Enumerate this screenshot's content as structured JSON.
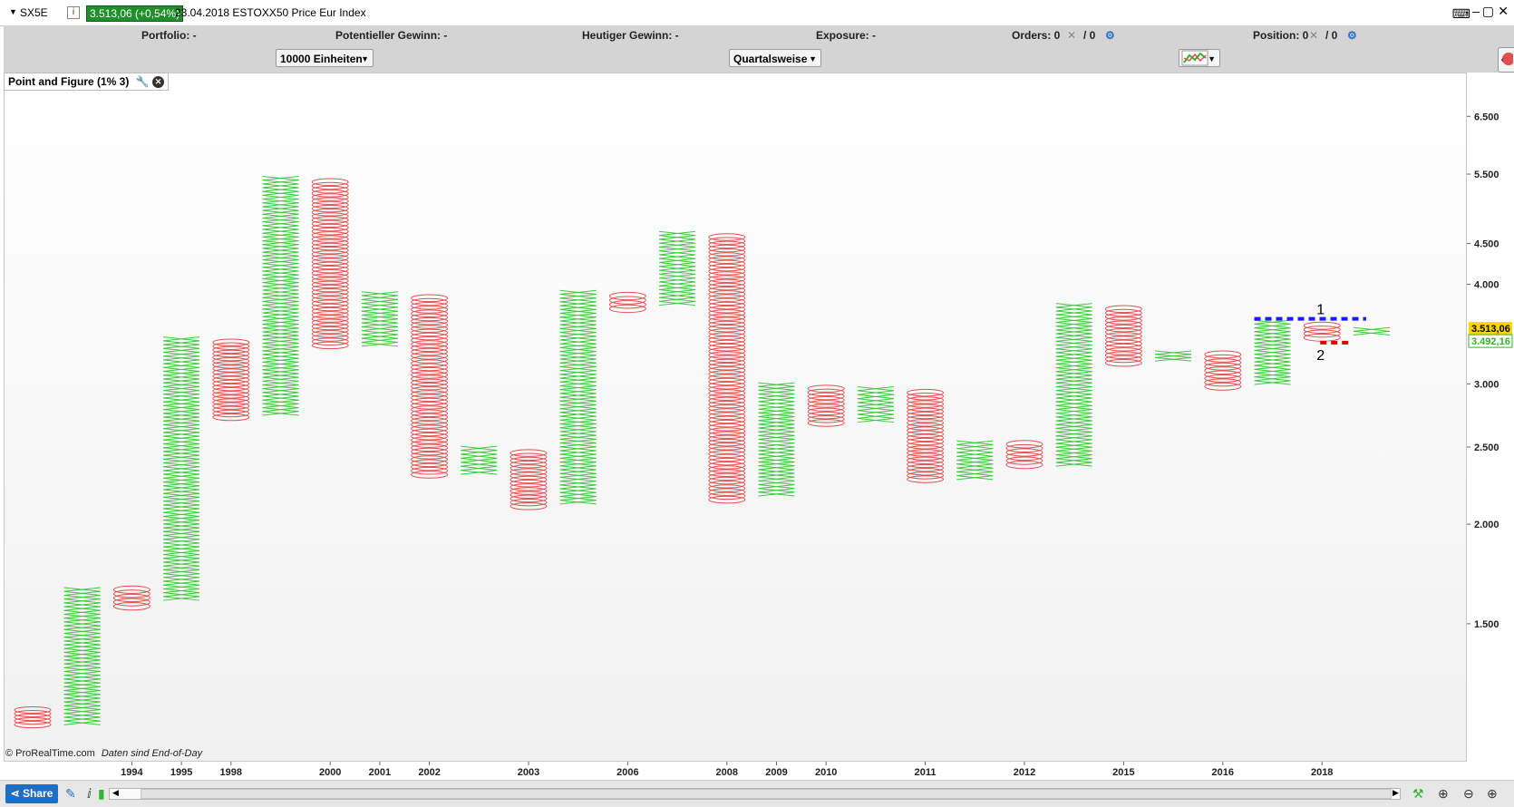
{
  "header": {
    "symbol": "SX5E",
    "info_label": "i",
    "quote": "3.513,06 (+0,54%)",
    "description": "23.04.2018  ESTOXX50 Price Eur Index",
    "keyboard_icon": "keyboard-icon",
    "window_buttons": [
      "–",
      "▢",
      "✕"
    ]
  },
  "account_bar": {
    "portfolio": "Portfolio: -",
    "potential_gain": "Potentieller Gewinn: -",
    "today_gain": "Heutiger Gewinn: -",
    "exposure": "Exposure: -",
    "orders": "Orders: 0",
    "orders_sep": "/ 0",
    "position": "Position: 0",
    "position_sep": "/ 0"
  },
  "controls": {
    "units_select": "10000 Einheiten",
    "period_select": "Quartalsweise"
  },
  "chart_title": "Point and Figure (1% 3)",
  "copyright": "© ProRealTime.com",
  "data_note": "Daten sind End-of-Day",
  "bottom": {
    "share_label": "Share"
  },
  "colors": {
    "x_column": "#3ec83e",
    "o_column": "#e05050",
    "resistance": "#1a1aff",
    "support": "#e00000",
    "price_tag": "#ffd400",
    "prev_tag": "#2fb52f"
  },
  "chart_data": {
    "type": "point-and-figure",
    "box_size_pct": 1,
    "reversal": 3,
    "y_scale": "log",
    "ylim": [
      1050,
      7000
    ],
    "y_ticks": [
      1500,
      2000,
      2500,
      3000,
      4000,
      4500,
      5500,
      6500
    ],
    "y_tick_labels": [
      "1.500",
      "2.000",
      "2.500",
      "3.000",
      "4.000",
      "4.500",
      "5.500",
      "6.500"
    ],
    "x_labels": [
      "1994",
      "1995",
      "1998",
      "2000",
      "2001",
      "2002",
      "2003",
      "2006",
      "2008",
      "2009",
      "2010",
      "2011",
      "2012",
      "2015",
      "2016",
      "2018"
    ],
    "x_label_columns": [
      2,
      3,
      4,
      6,
      7,
      8,
      10,
      12,
      14,
      15,
      16,
      18,
      20,
      22,
      24,
      26
    ],
    "columns": [
      {
        "type": "O",
        "low": 1115,
        "high": 1175
      },
      {
        "type": "X",
        "low": 1120,
        "high": 1665
      },
      {
        "type": "O",
        "low": 1568,
        "high": 1665
      },
      {
        "type": "X",
        "low": 1605,
        "high": 3435
      },
      {
        "type": "O",
        "low": 2710,
        "high": 3400
      },
      {
        "type": "X",
        "low": 2740,
        "high": 5465
      },
      {
        "type": "O",
        "low": 3335,
        "high": 5405
      },
      {
        "type": "X",
        "low": 3345,
        "high": 3915
      },
      {
        "type": "O",
        "low": 2295,
        "high": 3865
      },
      {
        "type": "X",
        "low": 2310,
        "high": 2505
      },
      {
        "type": "O",
        "low": 2095,
        "high": 2470
      },
      {
        "type": "X",
        "low": 2120,
        "high": 3930
      },
      {
        "type": "O",
        "low": 3705,
        "high": 3890
      },
      {
        "type": "X",
        "low": 3765,
        "high": 4660
      },
      {
        "type": "O",
        "low": 2135,
        "high": 4610
      },
      {
        "type": "X",
        "low": 2170,
        "high": 3010
      },
      {
        "type": "O",
        "low": 2665,
        "high": 2975
      },
      {
        "type": "X",
        "low": 2685,
        "high": 2975
      },
      {
        "type": "O",
        "low": 2265,
        "high": 2940
      },
      {
        "type": "X",
        "low": 2275,
        "high": 2545
      },
      {
        "type": "O",
        "low": 2360,
        "high": 2535
      },
      {
        "type": "X",
        "low": 2365,
        "high": 3785
      },
      {
        "type": "O",
        "low": 3170,
        "high": 3745
      },
      {
        "type": "X",
        "low": 3205,
        "high": 3300
      },
      {
        "type": "O",
        "low": 2960,
        "high": 3285
      },
      {
        "type": "X",
        "low": 2995,
        "high": 3605
      },
      {
        "type": "O",
        "low": 3410,
        "high": 3570
      },
      {
        "type": "X",
        "low": 3455,
        "high": 3530
      }
    ],
    "resistance_line": {
      "label": "1",
      "value": 3620,
      "from_column": 25,
      "to_column": 27
    },
    "support_line": {
      "label": "2",
      "value": 3380,
      "from_column": 26,
      "to_column": 27
    },
    "last_price": {
      "value": 3513.06,
      "label": "3.513,06"
    },
    "previous_price": {
      "value": 3492.16,
      "label": "3.492,16"
    }
  }
}
